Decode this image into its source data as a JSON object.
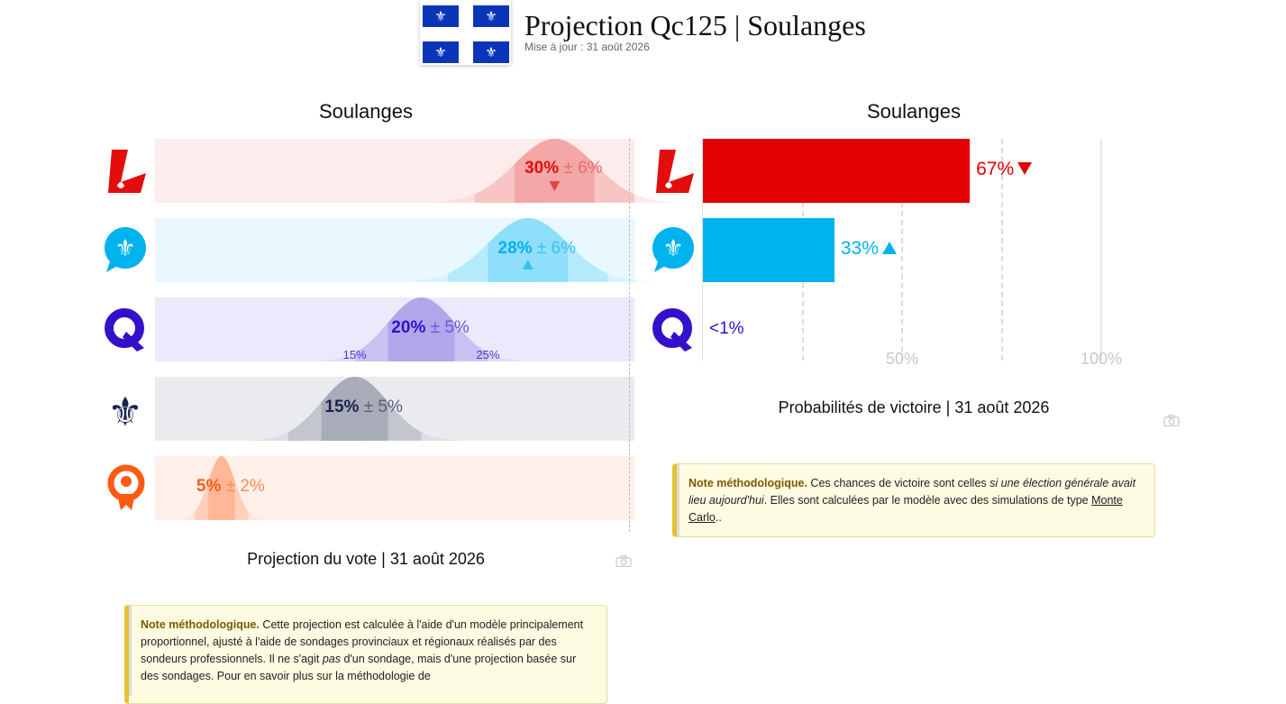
{
  "header": {
    "title": "Projection Qc125 | Soulanges",
    "updated": "Mise à jour : 31 août 2026",
    "flag_glyph": "⚜"
  },
  "vote_panel": {
    "title": "Soulanges",
    "caption": "Projection du vote | 31 août 2026",
    "note": {
      "label": "Note méthodologique.",
      "text_a": " Cette projection est calculée à l'aide d'un modèle principalement proportionnel, ajusté à l'aide de sondages provinciaux et régionaux réalisés par des sondeurs professionnels. Il ne s'agit ",
      "em": "pas",
      "text_b": " d'un sondage, mais d'une projection basée sur des sondages. Pour en savoir plus sur la méthodologie de"
    }
  },
  "prob_panel": {
    "title": "Soulanges",
    "caption": "Probabilités de victoire | 31 août 2026",
    "axis_labels": [
      "50%",
      "100%"
    ],
    "note": {
      "label": "Note méthodologique.",
      "text_a": " Ces chances de victoire sont celles ",
      "em": "si une élection générale avait lieu aujourd'hui",
      "text_b": ". Elles sont calculées par le modèle avec des simulations de type ",
      "link": "Monte Carlo",
      "text_c": ".."
    }
  },
  "icons": {
    "camera": "camera-icon",
    "flag": "quebec-flag-icon"
  },
  "chart_data": [
    {
      "type": "bar",
      "title": "Soulanges",
      "caption": "Projection du vote | 31 août 2026",
      "xlim": [
        0,
        36
      ],
      "categories": [
        "PLQ",
        "PQ",
        "CAQ",
        "PCQ",
        "QS"
      ],
      "series": [
        {
          "values": [
            30,
            28,
            20,
            15,
            5
          ],
          "margin": [
            6,
            6,
            5,
            5,
            2
          ],
          "labels": [
            "30%",
            "28%",
            "20%",
            "15%",
            "5%"
          ],
          "margin_labels": [
            "± 6%",
            "± 6%",
            "± 5%",
            "± 5%",
            "± 2%"
          ],
          "trend": [
            "down",
            "up",
            "",
            "",
            ""
          ]
        }
      ],
      "interval_labels": {
        "low": "15%",
        "high": "25%",
        "row": 2
      },
      "colors": [
        "#e30d0d",
        "#00b2ee",
        "#3311cc",
        "#1a2451",
        "#ff5a14"
      ]
    },
    {
      "type": "bar",
      "title": "Soulanges",
      "caption": "Probabilités de victoire | 31 août 2026",
      "categories": [
        "PLQ",
        "PQ",
        "CAQ"
      ],
      "values": [
        67,
        33,
        0.5
      ],
      "labels": [
        "67%",
        "33%",
        "<1%"
      ],
      "trend": [
        "down",
        "up",
        ""
      ],
      "xlim": [
        0,
        100
      ],
      "gridlines": [
        25,
        50,
        75,
        100
      ],
      "colors": [
        "#e30000",
        "#00b2ee",
        "#3311cc"
      ]
    }
  ]
}
